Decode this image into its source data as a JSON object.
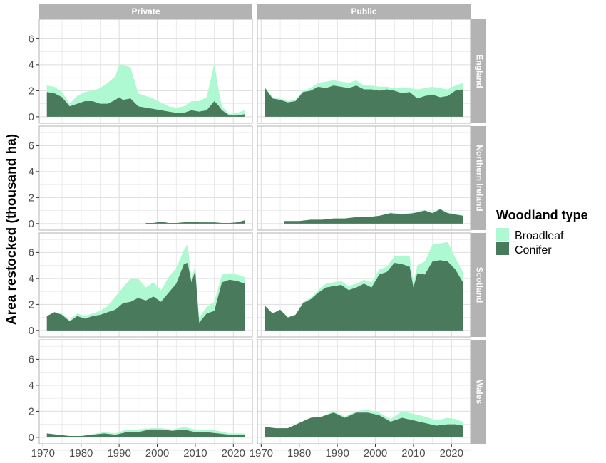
{
  "chart_data": {
    "type": "area",
    "ylabel": "Area restocked (thousand ha)",
    "xlabel": "",
    "xlim": [
      1969,
      2025
    ],
    "ylim": [
      -0.5,
      7.5
    ],
    "xticks": [
      1970,
      1980,
      1990,
      2000,
      2010,
      2020
    ],
    "yticks": [
      0,
      2,
      4,
      6
    ],
    "stacked": true,
    "grid": true,
    "legend": {
      "title": "Woodland type",
      "position": "right",
      "entries": [
        "Broadleaf",
        "Conifer"
      ]
    },
    "colors": {
      "Broadleaf": "#aff9d2",
      "Conifer": "#4a7a5c",
      "strip": "#b3b3b3",
      "grid": "#dedede"
    },
    "columns": [
      "Private",
      "Public"
    ],
    "rows": [
      "England",
      "Northern Ireland",
      "Scotland",
      "Wales"
    ],
    "panels": [
      {
        "column": "Private",
        "row": "England",
        "x": [
          1971,
          1973,
          1975,
          1977,
          1979,
          1981,
          1983,
          1985,
          1987,
          1989,
          1990,
          1991,
          1993,
          1995,
          1997,
          1999,
          2001,
          2003,
          2005,
          2007,
          2009,
          2011,
          2013,
          2015,
          2016,
          2017,
          2019,
          2021,
          2023
        ],
        "series": [
          {
            "name": "Conifer",
            "values": [
              1.9,
              1.8,
              1.5,
              0.8,
              1.0,
              1.2,
              1.2,
              1.0,
              1.0,
              1.3,
              1.5,
              1.3,
              1.4,
              0.8,
              0.7,
              0.6,
              0.5,
              0.4,
              0.3,
              0.3,
              0.5,
              0.4,
              0.5,
              1.2,
              0.9,
              0.5,
              0.1,
              0.1,
              0.2
            ]
          },
          {
            "name": "Broadleaf",
            "values": [
              0.5,
              0.5,
              0.4,
              0.2,
              0.6,
              0.7,
              0.8,
              1.2,
              1.6,
              1.8,
              2.5,
              2.7,
              2.4,
              1.0,
              0.9,
              0.8,
              0.6,
              0.4,
              0.4,
              0.5,
              0.7,
              0.8,
              1.0,
              2.9,
              1.4,
              0.3,
              0.1,
              0.2,
              0.3
            ]
          }
        ]
      },
      {
        "column": "Public",
        "row": "England",
        "x": [
          1971,
          1973,
          1975,
          1977,
          1979,
          1981,
          1983,
          1985,
          1987,
          1989,
          1991,
          1993,
          1995,
          1997,
          1999,
          2001,
          2003,
          2005,
          2007,
          2009,
          2011,
          2013,
          2015,
          2017,
          2019,
          2021,
          2023
        ],
        "series": [
          {
            "name": "Conifer",
            "values": [
              2.2,
              1.4,
              1.3,
              1.1,
              1.2,
              1.9,
              2.0,
              2.3,
              2.2,
              2.4,
              2.3,
              2.2,
              2.4,
              2.1,
              2.1,
              2.0,
              2.1,
              2.0,
              1.8,
              1.9,
              1.4,
              1.6,
              1.7,
              1.5,
              1.6,
              2.0,
              2.1
            ]
          },
          {
            "name": "Broadleaf",
            "values": [
              0.1,
              0.1,
              0.1,
              0.1,
              0.1,
              0.1,
              0.2,
              0.3,
              0.5,
              0.4,
              0.4,
              0.4,
              0.4,
              0.3,
              0.3,
              0.3,
              0.2,
              0.2,
              0.4,
              0.3,
              0.7,
              0.6,
              0.6,
              0.7,
              0.5,
              0.4,
              0.5
            ]
          }
        ]
      },
      {
        "column": "Private",
        "row": "Northern Ireland",
        "x": [
          1997,
          1999,
          2001,
          2003,
          2005,
          2007,
          2009,
          2011,
          2013,
          2015,
          2017,
          2019,
          2021,
          2023
        ],
        "series": [
          {
            "name": "Conifer",
            "values": [
              0.05,
              0.05,
              0.15,
              0.05,
              0.05,
              0.1,
              0.15,
              0.1,
              0.1,
              0.1,
              0.05,
              0.05,
              0.1,
              0.25
            ]
          },
          {
            "name": "Broadleaf",
            "values": [
              0.0,
              0.0,
              0.0,
              0.0,
              0.0,
              0.0,
              0.0,
              0.0,
              0.0,
              0.0,
              0.0,
              0.0,
              0.0,
              0.0
            ]
          }
        ]
      },
      {
        "column": "Public",
        "row": "Northern Ireland",
        "x": [
          1976,
          1978,
          1980,
          1983,
          1986,
          1989,
          1992,
          1995,
          1998,
          2001,
          2004,
          2007,
          2010,
          2013,
          2015,
          2017,
          2019,
          2021,
          2023
        ],
        "series": [
          {
            "name": "Conifer",
            "values": [
              0.2,
              0.2,
              0.2,
              0.3,
              0.3,
              0.4,
              0.4,
              0.5,
              0.5,
              0.6,
              0.8,
              0.7,
              0.8,
              1.0,
              0.8,
              1.1,
              0.8,
              0.7,
              0.6
            ]
          },
          {
            "name": "Broadleaf",
            "values": [
              0.0,
              0.0,
              0.0,
              0.0,
              0.0,
              0.0,
              0.0,
              0.0,
              0.0,
              0.0,
              0.05,
              0.05,
              0.05,
              0.05,
              0.05,
              0.05,
              0.05,
              0.05,
              0.05
            ]
          }
        ]
      },
      {
        "column": "Private",
        "row": "Scotland",
        "x": [
          1971,
          1973,
          1975,
          1977,
          1979,
          1981,
          1983,
          1985,
          1987,
          1989,
          1991,
          1993,
          1995,
          1997,
          1999,
          2001,
          2003,
          2005,
          2007,
          2008,
          2009,
          2010,
          2011,
          2013,
          2015,
          2017,
          2019,
          2021,
          2023
        ],
        "series": [
          {
            "name": "Conifer",
            "values": [
              1.1,
              1.4,
              1.2,
              0.7,
              1.1,
              0.9,
              1.1,
              1.2,
              1.4,
              1.6,
              2.1,
              2.2,
              2.5,
              2.3,
              2.6,
              2.2,
              2.9,
              3.6,
              5.1,
              5.2,
              3.7,
              4.6,
              0.6,
              1.3,
              1.5,
              3.7,
              3.9,
              3.8,
              3.6
            ]
          },
          {
            "name": "Broadleaf",
            "values": [
              0.0,
              0.0,
              0.1,
              0.1,
              0.2,
              0.2,
              0.2,
              0.3,
              0.5,
              1.0,
              1.2,
              1.8,
              1.5,
              1.0,
              1.1,
              0.9,
              1.2,
              1.2,
              1.1,
              1.4,
              0.3,
              0.4,
              0.4,
              0.5,
              0.7,
              0.6,
              0.5,
              0.5,
              0.5
            ]
          }
        ]
      },
      {
        "column": "Public",
        "row": "Scotland",
        "x": [
          1971,
          1973,
          1975,
          1977,
          1979,
          1981,
          1983,
          1985,
          1987,
          1989,
          1991,
          1993,
          1995,
          1997,
          1999,
          2001,
          2003,
          2005,
          2007,
          2009,
          2010,
          2011,
          2013,
          2015,
          2017,
          2019,
          2021,
          2023
        ],
        "series": [
          {
            "name": "Conifer",
            "values": [
              1.9,
              1.3,
              1.6,
              1.0,
              1.2,
              2.1,
              2.4,
              2.9,
              3.3,
              3.4,
              3.5,
              3.1,
              3.3,
              3.6,
              3.3,
              4.3,
              4.5,
              5.2,
              5.1,
              4.9,
              3.3,
              4.4,
              4.3,
              5.3,
              5.4,
              5.3,
              4.7,
              3.7
            ]
          },
          {
            "name": "Broadleaf",
            "values": [
              0.0,
              0.0,
              0.0,
              0.0,
              0.0,
              0.1,
              0.1,
              0.2,
              0.3,
              0.3,
              0.3,
              0.3,
              0.3,
              0.3,
              0.4,
              0.4,
              0.4,
              0.5,
              0.6,
              0.8,
              0.4,
              0.6,
              1.0,
              1.3,
              1.3,
              1.5,
              0.9,
              0.8
            ]
          }
        ]
      },
      {
        "column": "Private",
        "row": "Wales",
        "x": [
          1971,
          1974,
          1977,
          1980,
          1983,
          1986,
          1989,
          1992,
          1995,
          1998,
          2001,
          2004,
          2007,
          2010,
          2013,
          2016,
          2019,
          2021,
          2023
        ],
        "series": [
          {
            "name": "Conifer",
            "values": [
              0.3,
              0.2,
              0.1,
              0.1,
              0.2,
              0.3,
              0.2,
              0.4,
              0.4,
              0.6,
              0.6,
              0.5,
              0.6,
              0.4,
              0.4,
              0.3,
              0.2,
              0.2,
              0.2
            ]
          },
          {
            "name": "Broadleaf",
            "values": [
              0.0,
              0.0,
              0.0,
              0.0,
              0.05,
              0.1,
              0.1,
              0.2,
              0.2,
              0.1,
              0.1,
              0.1,
              0.2,
              0.2,
              0.2,
              0.2,
              0.1,
              0.1,
              0.1
            ]
          }
        ]
      },
      {
        "column": "Public",
        "row": "Wales",
        "x": [
          1971,
          1974,
          1977,
          1980,
          1983,
          1986,
          1989,
          1992,
          1995,
          1998,
          2001,
          2004,
          2007,
          2010,
          2013,
          2016,
          2019,
          2021,
          2023
        ],
        "series": [
          {
            "name": "Conifer",
            "values": [
              0.8,
              0.7,
              0.7,
              1.1,
              1.5,
              1.6,
              1.9,
              1.5,
              1.9,
              1.9,
              1.7,
              1.2,
              1.5,
              1.3,
              1.1,
              0.9,
              1.0,
              1.0,
              0.9
            ]
          },
          {
            "name": "Broadleaf",
            "values": [
              0.0,
              0.0,
              0.0,
              0.0,
              0.0,
              0.0,
              0.1,
              0.1,
              0.1,
              0.2,
              0.2,
              0.2,
              0.5,
              0.5,
              0.5,
              0.4,
              0.5,
              0.4,
              0.3
            ]
          }
        ]
      }
    ]
  }
}
